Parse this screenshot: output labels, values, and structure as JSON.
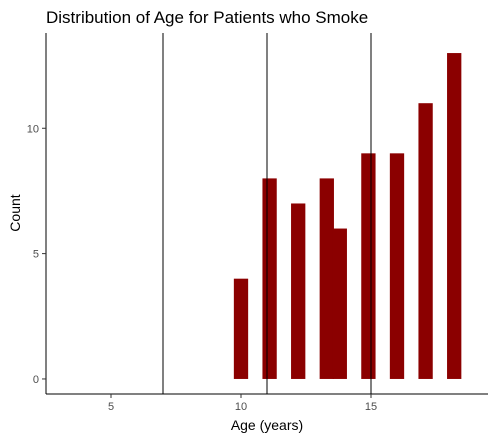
{
  "chart_data": {
    "type": "bar",
    "title": "Distribution of Age for Patients who Smoke",
    "xlabel": "Age (years)",
    "ylabel": "Count",
    "xlim": [
      2.5,
      19.5
    ],
    "ylim": [
      -0.6,
      13.8
    ],
    "x_ticks": [
      5,
      10,
      15
    ],
    "y_ticks": [
      0,
      5,
      10
    ],
    "bars": [
      {
        "x": 10,
        "value": 4
      },
      {
        "x": 11.1,
        "value": 8
      },
      {
        "x": 12.2,
        "value": 7
      },
      {
        "x": 13.3,
        "value": 8
      },
      {
        "x": 13.8,
        "value": 6
      },
      {
        "x": 14.9,
        "value": 9
      },
      {
        "x": 16.0,
        "value": 9
      },
      {
        "x": 17.1,
        "value": 11
      },
      {
        "x": 18.2,
        "value": 13
      }
    ],
    "bar_width": 0.55,
    "vlines": [
      7.0,
      11.0,
      15.0
    ],
    "bar_color": "#8b0000",
    "vline_color": "#000000",
    "grid": false,
    "legend": "none"
  }
}
